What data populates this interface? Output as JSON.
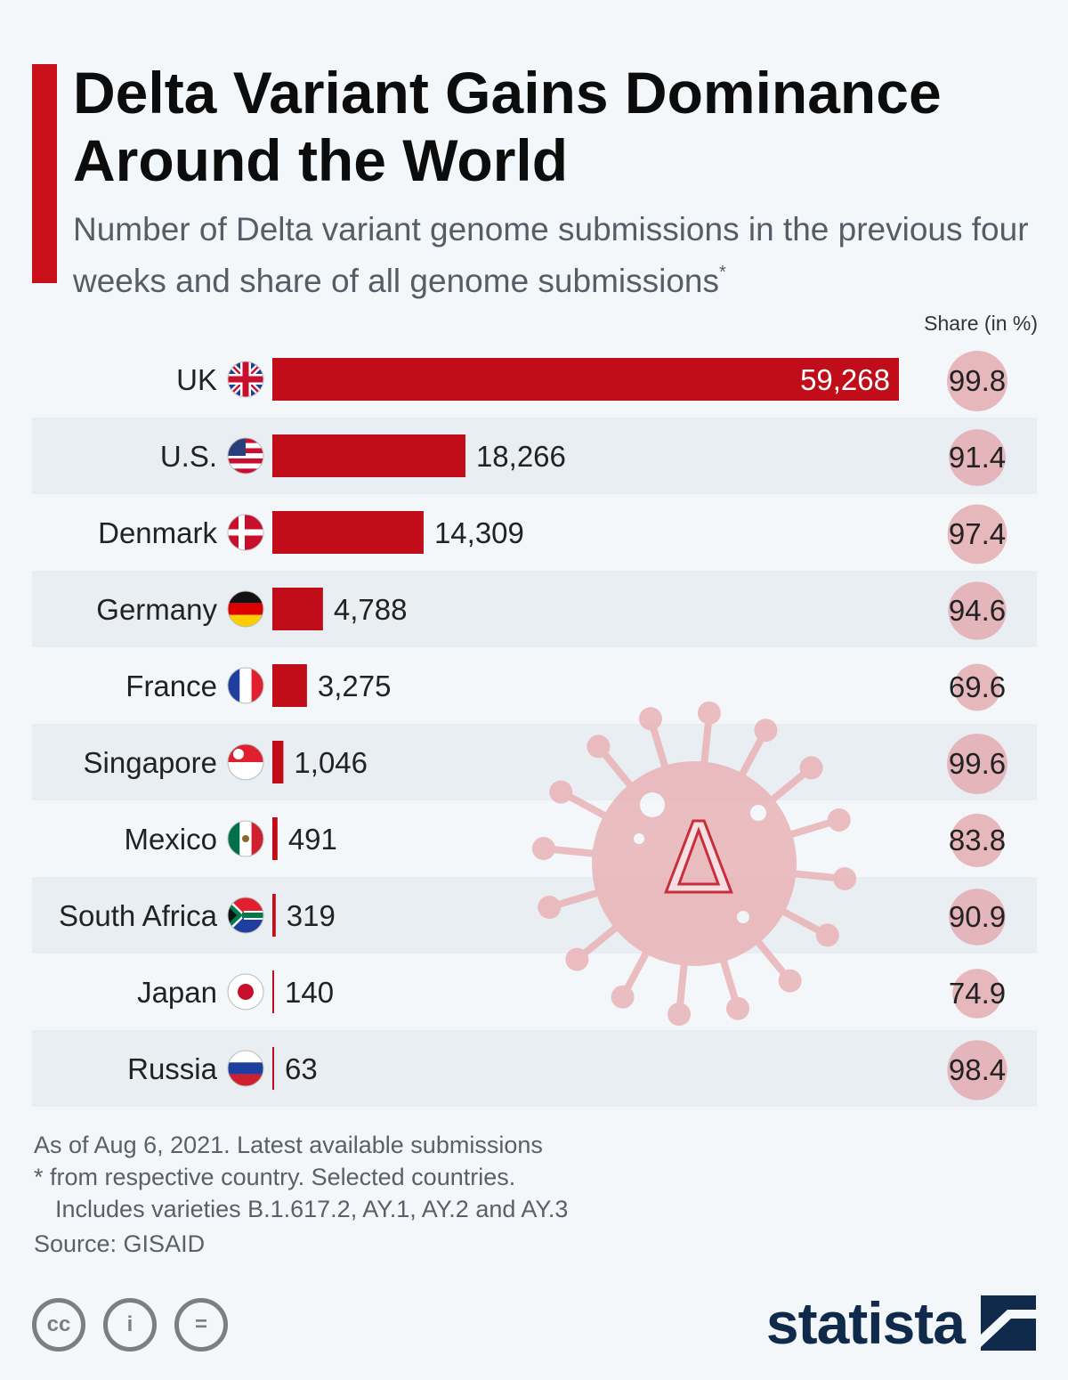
{
  "title": "Delta Variant Gains Dominance Around the World",
  "subtitle": "Number of Delta variant genome submissions in the previous four weeks and share of all genome submissions",
  "subtitle_marker": "*",
  "share_header": "Share (in %)",
  "colors": {
    "accent": "#c80f1a",
    "bar": "#c10d1a",
    "share_bubble": "#e2a6ab",
    "row_stripe": "#e9eef3",
    "brand": "#0f2a4a"
  },
  "chart_data": {
    "type": "bar",
    "orientation": "horizontal",
    "categories": [
      "UK",
      "U.S.",
      "Denmark",
      "Germany",
      "France",
      "Singapore",
      "Mexico",
      "South Africa",
      "Japan",
      "Russia"
    ],
    "values": [
      59268,
      18266,
      14309,
      4788,
      3275,
      1046,
      491,
      319,
      140,
      63
    ],
    "value_labels": [
      "59,268",
      "18,266",
      "14,309",
      "4,788",
      "3,275",
      "1,046",
      "491",
      "319",
      "140",
      "63"
    ],
    "shares": [
      99.8,
      91.4,
      97.4,
      94.6,
      69.6,
      99.6,
      83.8,
      90.9,
      74.9,
      98.4
    ],
    "share_labels": [
      "99.8",
      "91.4",
      "97.4",
      "94.6",
      "69.6",
      "99.6",
      "83.8",
      "90.9",
      "74.9",
      "98.4"
    ],
    "flag_icons": [
      "uk-flag-icon",
      "us-flag-icon",
      "denmark-flag-icon",
      "germany-flag-icon",
      "france-flag-icon",
      "singapore-flag-icon",
      "mexico-flag-icon",
      "south-africa-flag-icon",
      "japan-flag-icon",
      "russia-flag-icon"
    ],
    "xlim": [
      0,
      59268
    ],
    "grid": false,
    "legend": "none"
  },
  "watermark_glyph": "Δ",
  "footnote": {
    "line1": "As of Aug 6, 2021. Latest available submissions",
    "line2": "* from respective country. Selected countries.",
    "line3": "Includes varieties B.1.617.2, AY.1, AY.2 and AY.3"
  },
  "source": "Source: GISAID",
  "license_icons": [
    "cc-icon",
    "attribution-icon",
    "no-derivatives-icon"
  ],
  "license_glyphs": [
    "cc",
    "i",
    "="
  ],
  "brand": "statista",
  "brand_icon": "statista-logo-icon"
}
